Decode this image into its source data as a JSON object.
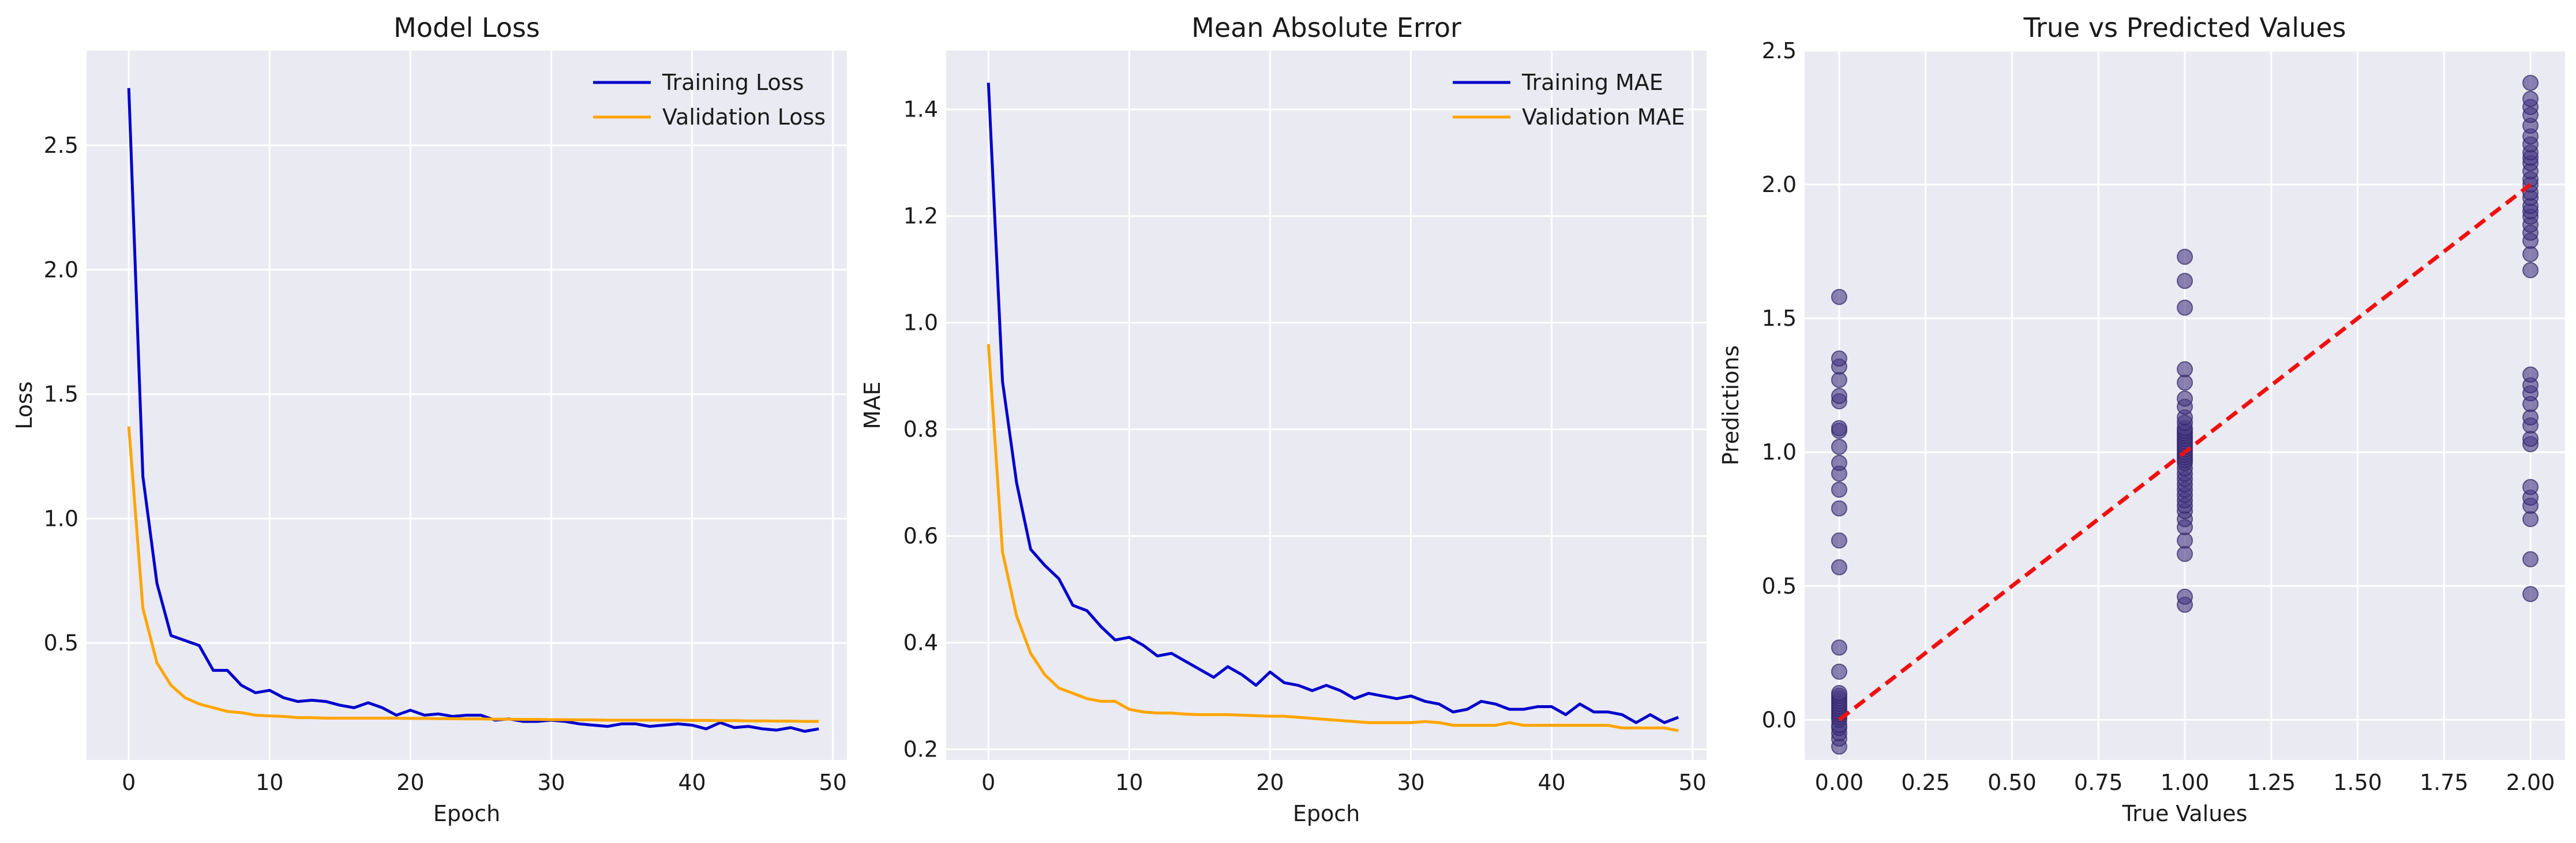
{
  "chart_data": [
    {
      "type": "line",
      "title": "Model Loss",
      "xlabel": "Epoch",
      "ylabel": "Loss",
      "xlim": [
        -3,
        51
      ],
      "ylim": [
        0.03,
        2.88
      ],
      "xticks": [
        0,
        10,
        20,
        30,
        40,
        50
      ],
      "yticks": [
        0.5,
        1.0,
        1.5,
        2.0,
        2.5
      ],
      "xtick_labels": [
        "0",
        "10",
        "20",
        "30",
        "40",
        "50"
      ],
      "ytick_labels": [
        "0.5",
        "1.0",
        "1.5",
        "2.0",
        "2.5"
      ],
      "grid": true,
      "legend": "top-right",
      "x": [
        0,
        1,
        2,
        3,
        4,
        5,
        6,
        7,
        8,
        9,
        10,
        11,
        12,
        13,
        14,
        15,
        16,
        17,
        18,
        19,
        20,
        21,
        22,
        23,
        24,
        25,
        26,
        27,
        28,
        29,
        30,
        31,
        32,
        33,
        34,
        35,
        36,
        37,
        38,
        39,
        40,
        41,
        42,
        43,
        44,
        45,
        46,
        47,
        48,
        49
      ],
      "series": [
        {
          "name": "Training Loss",
          "color": "#0000cc",
          "values": [
            2.73,
            1.17,
            0.74,
            0.53,
            0.51,
            0.49,
            0.39,
            0.39,
            0.33,
            0.3,
            0.31,
            0.28,
            0.265,
            0.27,
            0.265,
            0.25,
            0.24,
            0.26,
            0.24,
            0.21,
            0.23,
            0.21,
            0.215,
            0.205,
            0.21,
            0.21,
            0.19,
            0.195,
            0.185,
            0.185,
            0.19,
            0.185,
            0.175,
            0.17,
            0.165,
            0.175,
            0.175,
            0.165,
            0.17,
            0.175,
            0.17,
            0.155,
            0.18,
            0.16,
            0.165,
            0.155,
            0.15,
            0.16,
            0.145,
            0.155
          ]
        },
        {
          "name": "Validation Loss",
          "color": "#ffa500",
          "values": [
            1.37,
            0.64,
            0.42,
            0.33,
            0.28,
            0.255,
            0.24,
            0.225,
            0.22,
            0.21,
            0.207,
            0.205,
            0.2,
            0.2,
            0.198,
            0.198,
            0.198,
            0.198,
            0.198,
            0.198,
            0.197,
            0.197,
            0.196,
            0.196,
            0.195,
            0.195,
            0.194,
            0.194,
            0.193,
            0.193,
            0.192,
            0.192,
            0.191,
            0.191,
            0.19,
            0.19,
            0.19,
            0.19,
            0.19,
            0.19,
            0.189,
            0.189,
            0.188,
            0.188,
            0.187,
            0.187,
            0.186,
            0.186,
            0.185,
            0.185
          ]
        }
      ]
    },
    {
      "type": "line",
      "title": "Mean Absolute Error",
      "xlabel": "Epoch",
      "ylabel": "MAE",
      "xlim": [
        -3,
        51
      ],
      "ylim": [
        0.18,
        1.51
      ],
      "xticks": [
        0,
        10,
        20,
        30,
        40,
        50
      ],
      "yticks": [
        0.2,
        0.4,
        0.6,
        0.8,
        1.0,
        1.2,
        1.4
      ],
      "xtick_labels": [
        "0",
        "10",
        "20",
        "30",
        "40",
        "50"
      ],
      "ytick_labels": [
        "0.2",
        "0.4",
        "0.6",
        "0.8",
        "1.0",
        "1.2",
        "1.4"
      ],
      "grid": true,
      "legend": "top-right",
      "x": [
        0,
        1,
        2,
        3,
        4,
        5,
        6,
        7,
        8,
        9,
        10,
        11,
        12,
        13,
        14,
        15,
        16,
        17,
        18,
        19,
        20,
        21,
        22,
        23,
        24,
        25,
        26,
        27,
        28,
        29,
        30,
        31,
        32,
        33,
        34,
        35,
        36,
        37,
        38,
        39,
        40,
        41,
        42,
        43,
        44,
        45,
        46,
        47,
        48,
        49
      ],
      "series": [
        {
          "name": "Training MAE",
          "color": "#0000cc",
          "values": [
            1.45,
            0.89,
            0.7,
            0.575,
            0.545,
            0.52,
            0.47,
            0.46,
            0.43,
            0.405,
            0.41,
            0.395,
            0.375,
            0.38,
            0.365,
            0.35,
            0.335,
            0.355,
            0.34,
            0.32,
            0.345,
            0.325,
            0.32,
            0.31,
            0.32,
            0.31,
            0.295,
            0.305,
            0.3,
            0.295,
            0.3,
            0.29,
            0.285,
            0.27,
            0.275,
            0.29,
            0.285,
            0.275,
            0.275,
            0.28,
            0.28,
            0.265,
            0.285,
            0.27,
            0.27,
            0.265,
            0.25,
            0.265,
            0.25,
            0.26
          ]
        },
        {
          "name": "Validation MAE",
          "color": "#ffa500",
          "values": [
            0.96,
            0.57,
            0.45,
            0.38,
            0.34,
            0.315,
            0.305,
            0.295,
            0.29,
            0.29,
            0.275,
            0.27,
            0.268,
            0.268,
            0.266,
            0.265,
            0.265,
            0.265,
            0.264,
            0.263,
            0.262,
            0.262,
            0.26,
            0.258,
            0.256,
            0.254,
            0.252,
            0.25,
            0.25,
            0.25,
            0.25,
            0.252,
            0.25,
            0.245,
            0.245,
            0.245,
            0.245,
            0.25,
            0.245,
            0.245,
            0.245,
            0.245,
            0.245,
            0.245,
            0.245,
            0.24,
            0.24,
            0.24,
            0.24,
            0.235
          ]
        }
      ]
    },
    {
      "type": "scatter",
      "title": "True vs Predicted Values",
      "xlabel": "True Values",
      "ylabel": "Predictions",
      "xlim": [
        -0.1,
        2.1
      ],
      "ylim": [
        -0.15,
        2.5
      ],
      "xticks": [
        0.0,
        0.25,
        0.5,
        0.75,
        1.0,
        1.25,
        1.5,
        1.75,
        2.0
      ],
      "yticks": [
        0.0,
        0.5,
        1.0,
        1.5,
        2.0,
        2.5
      ],
      "xtick_labels": [
        "0.00",
        "0.25",
        "0.50",
        "0.75",
        "1.00",
        "1.25",
        "1.50",
        "1.75",
        "2.00"
      ],
      "ytick_labels": [
        "0.0",
        "0.5",
        "1.0",
        "1.5",
        "2.0",
        "2.5"
      ],
      "grid": true,
      "point_color": "#4b3b86",
      "reference_line": {
        "x": [
          0,
          2
        ],
        "y": [
          0,
          2
        ],
        "color": "#ee1111",
        "style": "dashed"
      },
      "points": {
        "x0": [
          -0.1,
          -0.07,
          -0.05,
          -0.03,
          -0.02,
          0.0,
          0.01,
          0.02,
          0.03,
          0.04,
          0.05,
          0.06,
          0.07,
          0.08,
          0.09,
          0.1,
          0.18,
          0.27,
          0.57,
          0.67,
          0.79,
          0.86,
          0.92,
          0.96,
          1.02,
          1.08,
          1.09,
          1.19,
          1.21,
          1.27,
          1.32,
          1.35,
          1.58
        ],
        "x1": [
          0.43,
          0.46,
          0.62,
          0.67,
          0.72,
          0.75,
          0.78,
          0.8,
          0.82,
          0.84,
          0.86,
          0.88,
          0.9,
          0.92,
          0.94,
          0.96,
          0.97,
          0.98,
          0.99,
          1.0,
          1.01,
          1.02,
          1.03,
          1.04,
          1.05,
          1.06,
          1.07,
          1.08,
          1.09,
          1.11,
          1.13,
          1.17,
          1.2,
          1.26,
          1.31,
          1.54,
          1.64,
          1.73
        ],
        "x2": [
          0.47,
          0.6,
          0.75,
          0.8,
          0.83,
          0.87,
          1.03,
          1.05,
          1.1,
          1.13,
          1.18,
          1.22,
          1.25,
          1.29,
          1.68,
          1.74,
          1.79,
          1.82,
          1.85,
          1.88,
          1.9,
          1.92,
          1.95,
          1.97,
          2.0,
          2.02,
          2.05,
          2.08,
          2.1,
          2.12,
          2.15,
          2.18,
          2.22,
          2.26,
          2.29,
          2.32,
          2.38
        ]
      }
    }
  ]
}
